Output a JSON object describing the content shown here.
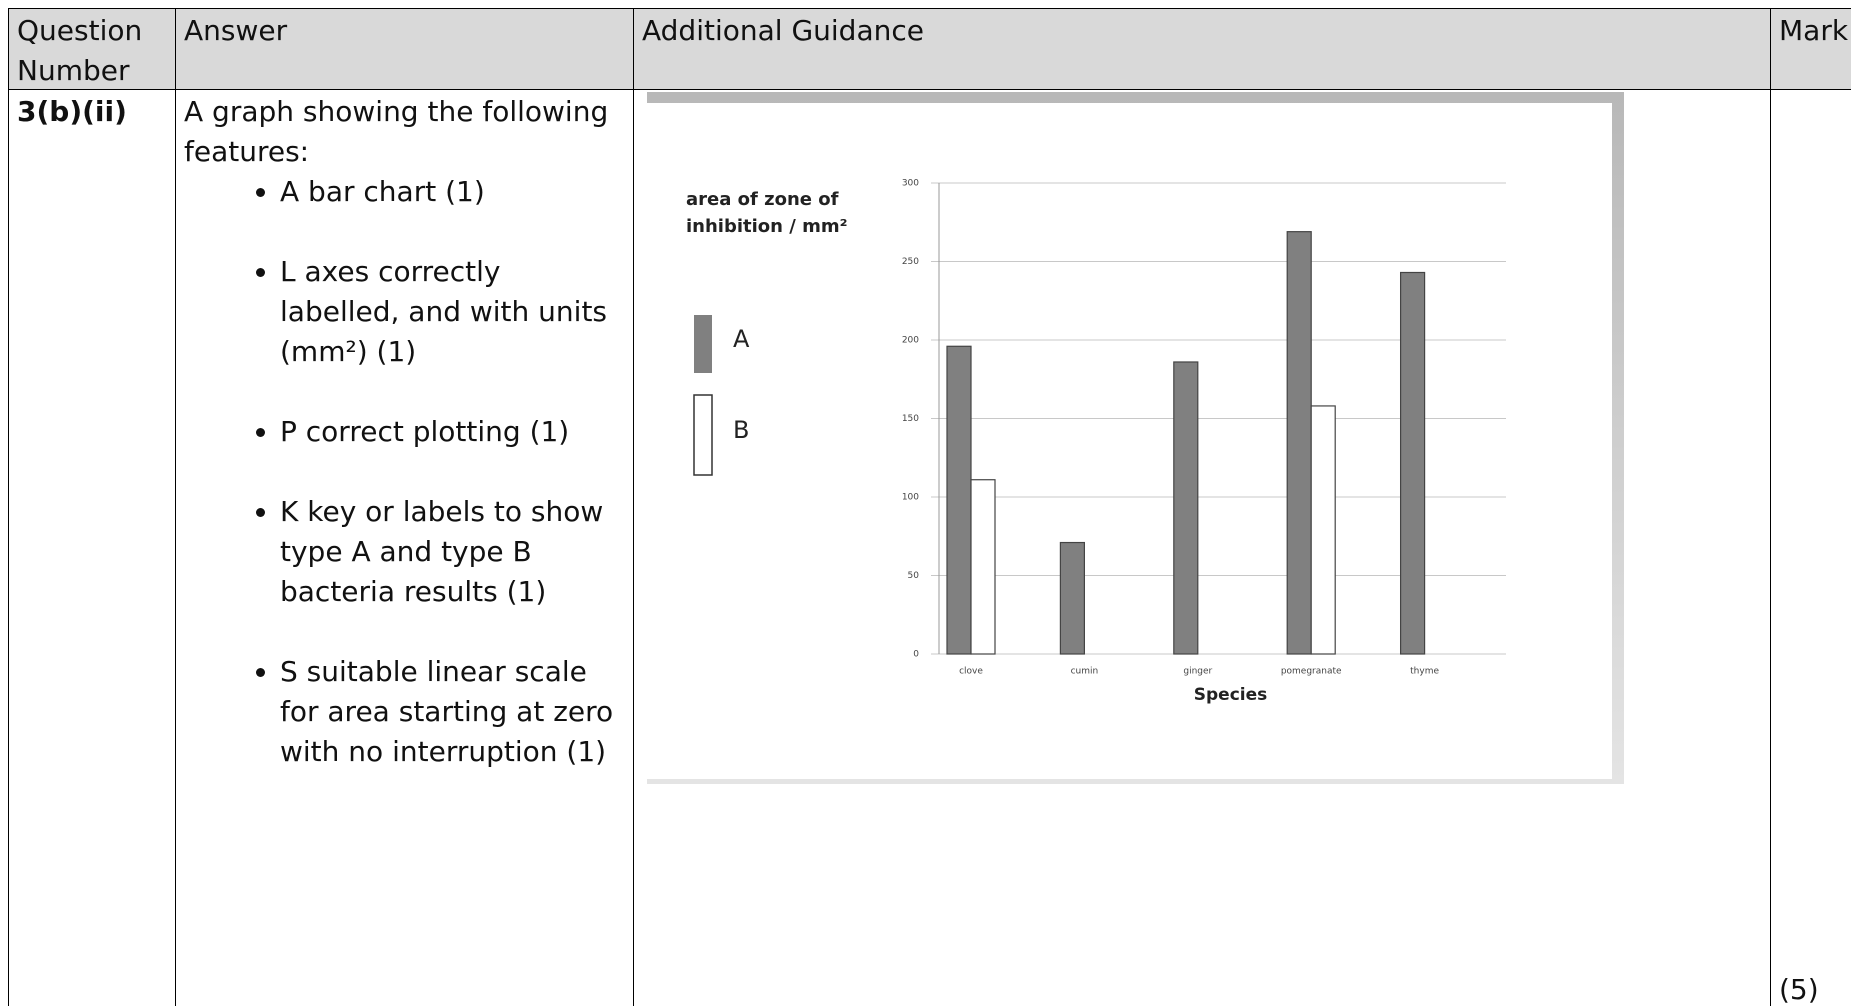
{
  "table": {
    "headers": [
      "Question Number",
      "Answer",
      "Additional Guidance",
      "Mark"
    ],
    "rows": [
      {
        "question": "3(b)(ii)",
        "answer": {
          "intro": "A graph showing the following features:",
          "bullets": [
            "A bar chart (1)",
            "L axes correctly labelled, and with units (mm²) (1)",
            "P correct plotting (1)",
            "K key or labels to show type A and type B bacteria results (1)",
            "S suitable linear scale for area starting at zero with no interruption (1)"
          ]
        },
        "mark": "(5)"
      }
    ]
  },
  "chart_data": {
    "type": "bar",
    "y_label": "area of zone of inhibition / mm²",
    "x_label": "Species",
    "categories": [
      "clove",
      "cumin",
      "ginger",
      "pomegranate",
      "thyme"
    ],
    "series": [
      {
        "name": "A",
        "color": "#808080",
        "values": [
          196,
          71,
          186,
          269,
          243
        ]
      },
      {
        "name": "B",
        "color": "#ffffff",
        "values": [
          111,
          null,
          null,
          158,
          null
        ]
      }
    ],
    "ylim": [
      0,
      300
    ],
    "yticks": [
      0,
      50,
      100,
      150,
      200,
      250,
      300
    ],
    "grid": true
  }
}
